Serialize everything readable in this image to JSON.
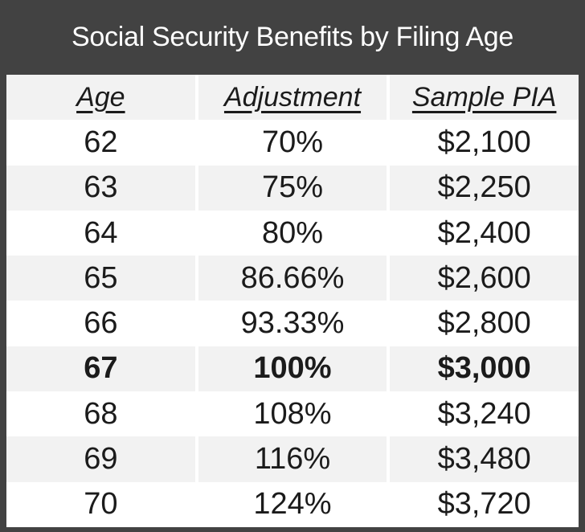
{
  "title": "Social Security Benefits by Filing Age",
  "chart_data": {
    "type": "table",
    "title": "Social Security Benefits by Filing Age",
    "columns": [
      "Age",
      "Adjustment",
      "Sample PIA"
    ],
    "rows": [
      [
        "62",
        "70%",
        "$2,100"
      ],
      [
        "63",
        "75%",
        "$2,250"
      ],
      [
        "64",
        "80%",
        "$2,400"
      ],
      [
        "65",
        "86.66%",
        "$2,600"
      ],
      [
        "66",
        "93.33%",
        "$2,800"
      ],
      [
        "67",
        "100%",
        "$3,000"
      ],
      [
        "68",
        "108%",
        "$3,240"
      ],
      [
        "69",
        "116%",
        "$3,480"
      ],
      [
        "70",
        "124%",
        "$3,720"
      ]
    ],
    "emphasized_row_index": 5,
    "layout": {
      "grid": "off",
      "row_striping": "alternating"
    }
  },
  "colors": {
    "frame": "#424242",
    "row": "#ffffff",
    "row_alt": "#f2f2f2",
    "title_text": "#ffffff",
    "cell_text": "#1b1b1b"
  }
}
